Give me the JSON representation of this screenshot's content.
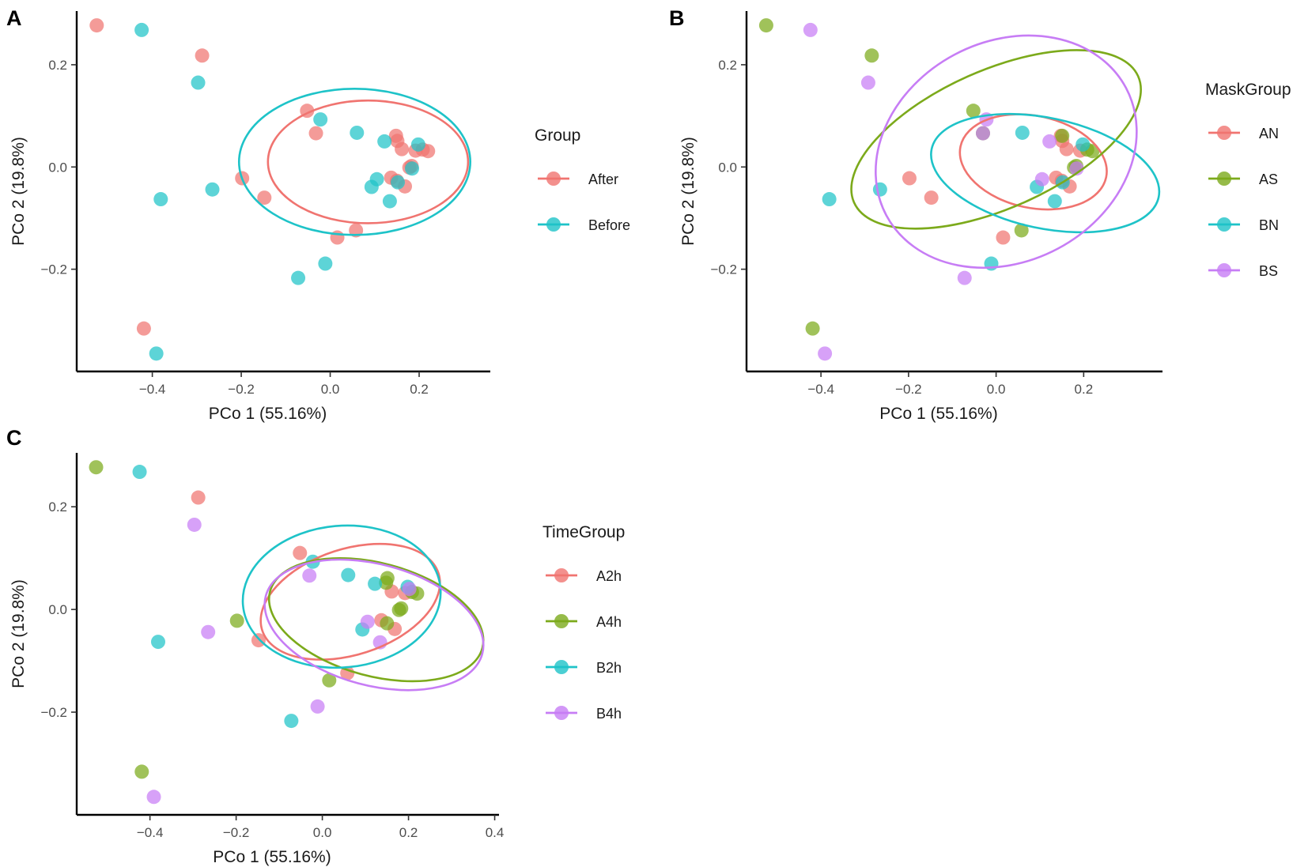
{
  "colors": {
    "red": "#f07470",
    "green": "#7caa1b",
    "teal": "#1ec3c8",
    "purple": "#c77df5",
    "axis": "#000000",
    "tick": "#4d4d4d"
  },
  "chart_data": [
    {
      "panel": "A",
      "type": "scatter",
      "xlabel": "PCo 1 (55.16%)",
      "ylabel": "PCo 2 (19.8%)",
      "xlim": [
        -0.57,
        0.36
      ],
      "ylim": [
        -0.4,
        0.305
      ],
      "xticks": [
        -0.4,
        -0.2,
        0.0,
        0.2
      ],
      "xtick_labels": [
        "−0.4",
        "−0.2",
        "0.0",
        "0.2"
      ],
      "yticks": [
        -0.2,
        0.0,
        0.2
      ],
      "ytick_labels": [
        "−0.2",
        "0.0",
        "0.2"
      ],
      "legend": {
        "title": "Group",
        "position": "right"
      },
      "series": [
        {
          "name": "After",
          "color": "#f07470",
          "points": [
            [
              -0.525,
              0.277
            ],
            [
              -0.288,
              0.218
            ],
            [
              -0.052,
              0.11
            ],
            [
              -0.032,
              0.066
            ],
            [
              0.148,
              0.061
            ],
            [
              0.151,
              0.051
            ],
            [
              0.161,
              0.035
            ],
            [
              0.192,
              0.032
            ],
            [
              0.208,
              0.034
            ],
            [
              0.22,
              0.031
            ],
            [
              0.183,
              0.002
            ],
            [
              0.178,
              -0.001
            ],
            [
              0.137,
              -0.021
            ],
            [
              0.15,
              -0.027
            ],
            [
              0.168,
              -0.038
            ],
            [
              -0.198,
              -0.022
            ],
            [
              -0.148,
              -0.06
            ],
            [
              0.058,
              -0.124
            ],
            [
              0.016,
              -0.138
            ],
            [
              -0.419,
              -0.316
            ]
          ],
          "ellipse": {
            "cx": 0.085,
            "cy": 0.01,
            "rx": 0.225,
            "ry": 0.12,
            "angle_deg": 0
          }
        },
        {
          "name": "Before",
          "color": "#1ec3c8",
          "points": [
            [
              -0.424,
              0.268
            ],
            [
              -0.297,
              0.165
            ],
            [
              -0.022,
              0.093
            ],
            [
              0.06,
              0.067
            ],
            [
              0.122,
              0.05
            ],
            [
              0.198,
              0.044
            ],
            [
              0.105,
              -0.024
            ],
            [
              0.093,
              -0.039
            ],
            [
              0.134,
              -0.067
            ],
            [
              0.184,
              -0.003
            ],
            [
              0.152,
              -0.03
            ],
            [
              -0.381,
              -0.063
            ],
            [
              -0.265,
              -0.044
            ],
            [
              -0.011,
              -0.189
            ],
            [
              -0.072,
              -0.217
            ],
            [
              -0.391,
              -0.365
            ]
          ],
          "ellipse": {
            "cx": 0.055,
            "cy": 0.01,
            "rx": 0.26,
            "ry": 0.143,
            "angle_deg": 0
          }
        }
      ]
    },
    {
      "panel": "B",
      "type": "scatter",
      "xlabel": "PCo 1 (55.16%)",
      "ylabel": "PCo 2 (19.8%)",
      "xlim": [
        -0.57,
        0.38
      ],
      "ylim": [
        -0.4,
        0.305
      ],
      "xticks": [
        -0.4,
        -0.2,
        0.0,
        0.2
      ],
      "xtick_labels": [
        "−0.4",
        "−0.2",
        "0.0",
        "0.2"
      ],
      "yticks": [
        -0.2,
        0.0,
        0.2
      ],
      "ytick_labels": [
        "−0.2",
        "0.0",
        "0.2"
      ],
      "legend": {
        "title": "MaskGroup",
        "position": "right"
      },
      "series": [
        {
          "name": "AN",
          "color": "#f07470",
          "points": [
            [
              0.148,
              0.061
            ],
            [
              0.151,
              0.051
            ],
            [
              0.161,
              0.035
            ],
            [
              0.192,
              0.032
            ],
            [
              0.137,
              -0.021
            ],
            [
              0.15,
              -0.027
            ],
            [
              0.168,
              -0.038
            ],
            [
              -0.198,
              -0.022
            ],
            [
              -0.148,
              -0.06
            ],
            [
              0.016,
              -0.138
            ]
          ],
          "ellipse": {
            "cx": 0.085,
            "cy": 0.01,
            "rx": 0.17,
            "ry": 0.09,
            "angle_deg": 12
          }
        },
        {
          "name": "AS",
          "color": "#7caa1b",
          "points": [
            [
              -0.525,
              0.277
            ],
            [
              -0.284,
              0.218
            ],
            [
              -0.052,
              0.11
            ],
            [
              -0.03,
              0.066
            ],
            [
              0.151,
              0.061
            ],
            [
              0.208,
              0.034
            ],
            [
              0.22,
              0.031
            ],
            [
              0.183,
              0.002
            ],
            [
              0.178,
              -0.001
            ],
            [
              0.058,
              -0.124
            ],
            [
              -0.419,
              -0.316
            ]
          ],
          "ellipse": {
            "cx": 0.0,
            "cy": 0.054,
            "rx": 0.355,
            "ry": 0.135,
            "angle_deg": -24
          }
        },
        {
          "name": "BN",
          "color": "#1ec3c8",
          "points": [
            [
              0.06,
              0.067
            ],
            [
              0.198,
              0.044
            ],
            [
              0.093,
              -0.039
            ],
            [
              0.134,
              -0.067
            ],
            [
              0.152,
              -0.03
            ],
            [
              -0.381,
              -0.063
            ],
            [
              -0.265,
              -0.044
            ],
            [
              -0.011,
              -0.189
            ]
          ],
          "ellipse": {
            "cx": 0.112,
            "cy": -0.012,
            "rx": 0.265,
            "ry": 0.108,
            "angle_deg": 12
          }
        },
        {
          "name": "BS",
          "color": "#c77df5",
          "points": [
            [
              -0.424,
              0.268
            ],
            [
              -0.292,
              0.165
            ],
            [
              -0.022,
              0.093
            ],
            [
              -0.03,
              0.066
            ],
            [
              0.122,
              0.05
            ],
            [
              0.184,
              -0.003
            ],
            [
              0.105,
              -0.024
            ],
            [
              -0.072,
              -0.217
            ],
            [
              -0.391,
              -0.365
            ]
          ],
          "ellipse": {
            "cx": 0.023,
            "cy": 0.03,
            "rx": 0.31,
            "ry": 0.215,
            "angle_deg": -28
          }
        }
      ]
    },
    {
      "panel": "C",
      "type": "scatter",
      "xlabel": "PCo 1 (55.16%)",
      "ylabel": "PCo 2 (19.8%)",
      "xlim": [
        -0.57,
        0.41
      ],
      "ylim": [
        -0.4,
        0.305
      ],
      "xticks": [
        -0.4,
        -0.2,
        0.0,
        0.2,
        0.4
      ],
      "xtick_labels": [
        "−0.4",
        "−0.2",
        "0.0",
        "0.2",
        "0.4"
      ],
      "yticks": [
        -0.2,
        0.0,
        0.2
      ],
      "ytick_labels": [
        "−0.2",
        "0.0",
        "0.2"
      ],
      "legend": {
        "title": "TimeGroup",
        "position": "right"
      },
      "series": [
        {
          "name": "A2h",
          "color": "#f07470",
          "points": [
            [
              -0.288,
              0.218
            ],
            [
              -0.052,
              0.11
            ],
            [
              0.161,
              0.035
            ],
            [
              0.192,
              0.032
            ],
            [
              0.137,
              -0.021
            ],
            [
              0.168,
              -0.038
            ],
            [
              -0.148,
              -0.06
            ],
            [
              0.058,
              -0.124
            ]
          ],
          "ellipse": {
            "cx": 0.065,
            "cy": 0.015,
            "rx": 0.215,
            "ry": 0.103,
            "angle_deg": -18
          }
        },
        {
          "name": "A4h",
          "color": "#7caa1b",
          "points": [
            [
              -0.525,
              0.277
            ],
            [
              0.151,
              0.061
            ],
            [
              0.148,
              0.052
            ],
            [
              0.208,
              0.034
            ],
            [
              0.22,
              0.031
            ],
            [
              0.183,
              0.002
            ],
            [
              0.178,
              -0.001
            ],
            [
              0.15,
              -0.027
            ],
            [
              -0.198,
              -0.022
            ],
            [
              0.016,
              -0.138
            ],
            [
              -0.419,
              -0.316
            ]
          ],
          "ellipse": {
            "cx": 0.125,
            "cy": -0.02,
            "rx": 0.255,
            "ry": 0.11,
            "angle_deg": 15
          }
        },
        {
          "name": "B2h",
          "color": "#1ec3c8",
          "points": [
            [
              -0.424,
              0.268
            ],
            [
              -0.022,
              0.093
            ],
            [
              0.06,
              0.067
            ],
            [
              0.122,
              0.05
            ],
            [
              0.198,
              0.044
            ],
            [
              0.093,
              -0.039
            ],
            [
              -0.381,
              -0.063
            ],
            [
              -0.072,
              -0.217
            ]
          ],
          "ellipse": {
            "cx": 0.045,
            "cy": 0.025,
            "rx": 0.23,
            "ry": 0.138,
            "angle_deg": -5
          }
        },
        {
          "name": "B4h",
          "color": "#c77df5",
          "points": [
            [
              -0.297,
              0.165
            ],
            [
              -0.03,
              0.066
            ],
            [
              0.202,
              0.04
            ],
            [
              0.105,
              -0.024
            ],
            [
              0.134,
              -0.064
            ],
            [
              -0.265,
              -0.044
            ],
            [
              -0.011,
              -0.189
            ],
            [
              -0.391,
              -0.365
            ]
          ],
          "ellipse": {
            "cx": 0.12,
            "cy": -0.03,
            "rx": 0.26,
            "ry": 0.118,
            "angle_deg": 15
          }
        }
      ]
    }
  ]
}
